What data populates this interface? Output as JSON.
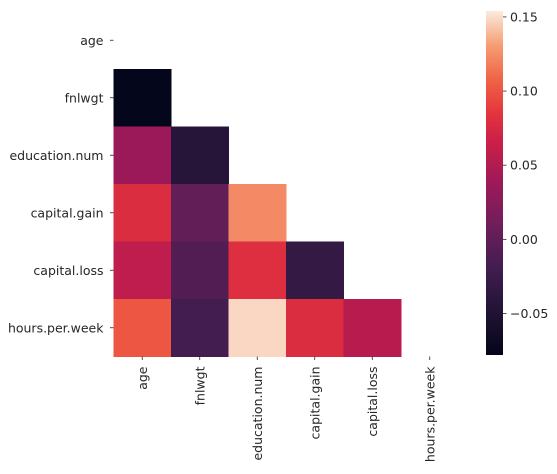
{
  "chart_data": {
    "type": "heatmap",
    "variables": [
      "age",
      "fnlwgt",
      "education.num",
      "capital.gain",
      "capital.loss",
      "hours.per.week"
    ],
    "mask": "upper-triangle-including-diagonal",
    "cells": [
      {
        "row": "fnlwgt",
        "col": "age",
        "value": -0.077
      },
      {
        "row": "education.num",
        "col": "age",
        "value": 0.037
      },
      {
        "row": "education.num",
        "col": "fnlwgt",
        "value": -0.043
      },
      {
        "row": "capital.gain",
        "col": "age",
        "value": 0.078
      },
      {
        "row": "capital.gain",
        "col": "fnlwgt",
        "value": 0.0004
      },
      {
        "row": "capital.gain",
        "col": "education.num",
        "value": 0.123
      },
      {
        "row": "capital.loss",
        "col": "age",
        "value": 0.058
      },
      {
        "row": "capital.loss",
        "col": "fnlwgt",
        "value": -0.01
      },
      {
        "row": "capital.loss",
        "col": "education.num",
        "value": 0.08
      },
      {
        "row": "capital.loss",
        "col": "capital.gain",
        "value": -0.032
      },
      {
        "row": "hours.per.week",
        "col": "age",
        "value": 0.101
      },
      {
        "row": "hours.per.week",
        "col": "fnlwgt",
        "value": -0.019
      },
      {
        "row": "hours.per.week",
        "col": "education.num",
        "value": 0.148
      },
      {
        "row": "hours.per.week",
        "col": "capital.gain",
        "value": 0.078
      },
      {
        "row": "hours.per.week",
        "col": "capital.loss",
        "value": 0.054
      }
    ],
    "colorbar": {
      "min": -0.078,
      "max": 0.154,
      "ticks": [
        -0.05,
        0.0,
        0.05,
        0.1,
        0.15
      ],
      "tick_labels": [
        "−0.05",
        "0.00",
        "0.05",
        "0.10",
        "0.15"
      ],
      "colormap": "rocket"
    },
    "title": "",
    "xlabel": "",
    "ylabel": ""
  }
}
